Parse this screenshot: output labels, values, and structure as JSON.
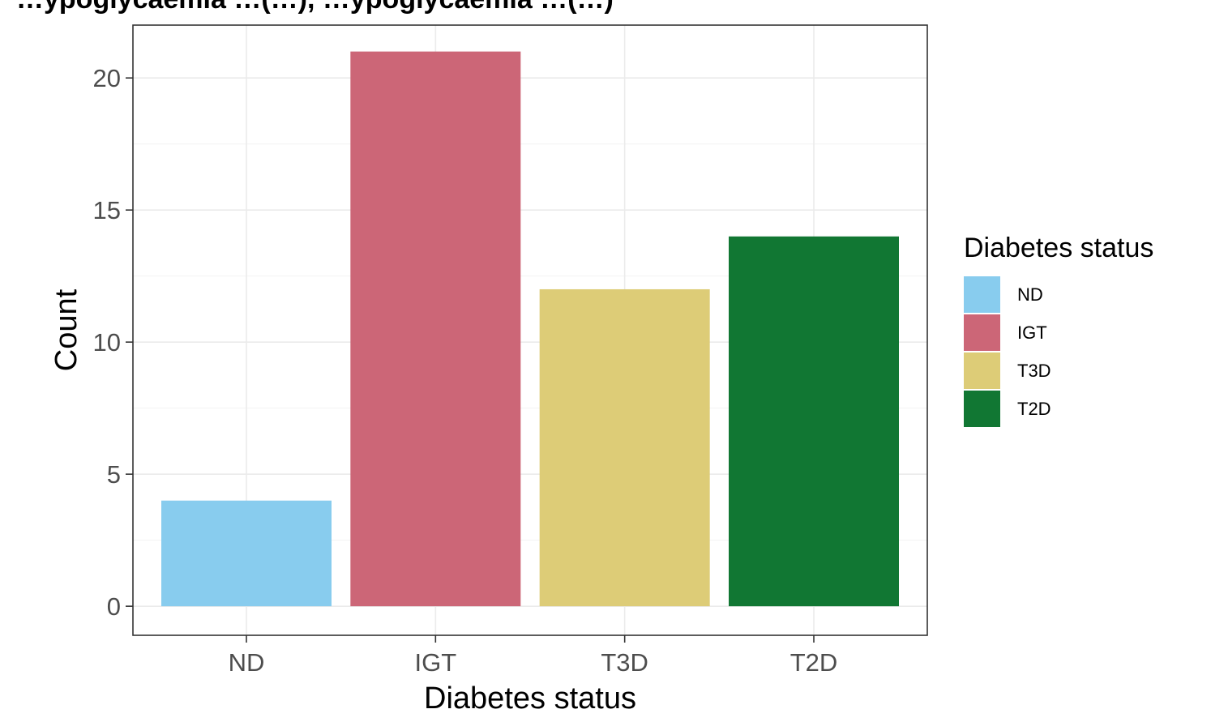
{
  "title": "…ypoglycaemia …(…), …ypoglycaemia …(…)",
  "chart_data": {
    "type": "bar",
    "categories": [
      "ND",
      "IGT",
      "T3D",
      "T2D"
    ],
    "values": [
      4,
      21,
      12,
      14
    ],
    "colors": [
      "#88ccee",
      "#cc6677",
      "#ddcc77",
      "#117733"
    ],
    "xlabel": "Diabetes status",
    "ylabel": "Count",
    "ylim": [
      -1.1,
      22
    ],
    "yticks": [
      0,
      5,
      10,
      15,
      20
    ],
    "grid": true,
    "legend": {
      "title": "Diabetes status",
      "placement": "right",
      "items": [
        {
          "label": "ND",
          "color": "#88ccee"
        },
        {
          "label": "IGT",
          "color": "#cc6677"
        },
        {
          "label": "T3D",
          "color": "#ddcc77"
        },
        {
          "label": "T2D",
          "color": "#117733"
        }
      ]
    }
  }
}
